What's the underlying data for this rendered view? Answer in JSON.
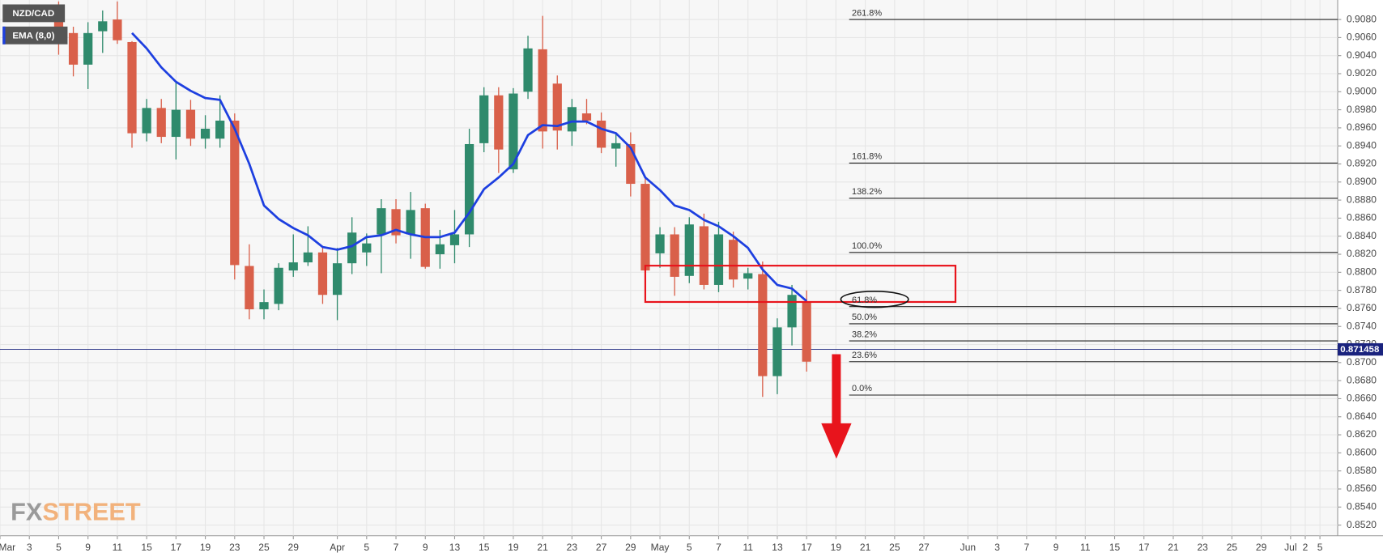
{
  "chart_data": {
    "type": "candlestick",
    "name": "NZD/CAD",
    "up_color": "#2f8a6c",
    "down_color": "#d9604a",
    "grid": true,
    "xlim": [
      0,
      91.21
    ],
    "ylim": [
      0.85082,
      0.91016
    ],
    "xticks": [
      {
        "value": 0,
        "label": "Mar"
      },
      {
        "value": 2,
        "label": "3"
      },
      {
        "value": 4,
        "label": "5"
      },
      {
        "value": 6,
        "label": "9"
      },
      {
        "value": 8,
        "label": "11"
      },
      {
        "value": 10,
        "label": "15"
      },
      {
        "value": 12,
        "label": "17"
      },
      {
        "value": 14,
        "label": "19"
      },
      {
        "value": 16,
        "label": "23"
      },
      {
        "value": 18,
        "label": "25"
      },
      {
        "value": 20,
        "label": "29"
      },
      {
        "value": 23,
        "label": "Apr"
      },
      {
        "value": 25,
        "label": "5"
      },
      {
        "value": 27,
        "label": "7"
      },
      {
        "value": 29,
        "label": "9"
      },
      {
        "value": 31,
        "label": "13"
      },
      {
        "value": 33,
        "label": "15"
      },
      {
        "value": 35,
        "label": "19"
      },
      {
        "value": 37,
        "label": "21"
      },
      {
        "value": 39,
        "label": "23"
      },
      {
        "value": 41,
        "label": "27"
      },
      {
        "value": 43,
        "label": "29"
      },
      {
        "value": 45,
        "label": "May"
      },
      {
        "value": 47,
        "label": "5"
      },
      {
        "value": 49,
        "label": "7"
      },
      {
        "value": 51,
        "label": "11"
      },
      {
        "value": 53,
        "label": "13"
      },
      {
        "value": 55,
        "label": "17"
      },
      {
        "value": 57,
        "label": "19"
      },
      {
        "value": 59,
        "label": "21"
      },
      {
        "value": 61,
        "label": "25"
      },
      {
        "value": 63,
        "label": "27"
      },
      {
        "value": 66,
        "label": "Jun"
      },
      {
        "value": 68,
        "label": "3"
      },
      {
        "value": 70,
        "label": "7"
      },
      {
        "value": 72,
        "label": "9"
      },
      {
        "value": 74,
        "label": "11"
      },
      {
        "value": 76,
        "label": "15"
      },
      {
        "value": 78,
        "label": "17"
      },
      {
        "value": 80,
        "label": "21"
      },
      {
        "value": 82,
        "label": "23"
      },
      {
        "value": 84,
        "label": "25"
      },
      {
        "value": 86,
        "label": "29"
      },
      {
        "value": 88,
        "label": "Jul"
      },
      {
        "value": 89,
        "label": "2"
      },
      {
        "value": 90,
        "label": "5"
      }
    ],
    "yticks": [
      {
        "value": 0.852,
        "label": "0.8520"
      },
      {
        "value": 0.854,
        "label": "0.8540"
      },
      {
        "value": 0.856,
        "label": "0.8560"
      },
      {
        "value": 0.858,
        "label": "0.8580"
      },
      {
        "value": 0.86,
        "label": "0.8600"
      },
      {
        "value": 0.862,
        "label": "0.8620"
      },
      {
        "value": 0.864,
        "label": "0.8640"
      },
      {
        "value": 0.866,
        "label": "0.8660"
      },
      {
        "value": 0.868,
        "label": "0.8680"
      },
      {
        "value": 0.87,
        "label": "0.8700"
      },
      {
        "value": 0.872,
        "label": "0.8720"
      },
      {
        "value": 0.874,
        "label": "0.8740"
      },
      {
        "value": 0.876,
        "label": "0.8760"
      },
      {
        "value": 0.878,
        "label": "0.8780"
      },
      {
        "value": 0.88,
        "label": "0.8800"
      },
      {
        "value": 0.882,
        "label": "0.8820"
      },
      {
        "value": 0.884,
        "label": "0.8840"
      },
      {
        "value": 0.886,
        "label": "0.8860"
      },
      {
        "value": 0.888,
        "label": "0.8880"
      },
      {
        "value": 0.89,
        "label": "0.8900"
      },
      {
        "value": 0.892,
        "label": "0.8920"
      },
      {
        "value": 0.894,
        "label": "0.8940"
      },
      {
        "value": 0.896,
        "label": "0.8960"
      },
      {
        "value": 0.898,
        "label": "0.8980"
      },
      {
        "value": 0.9,
        "label": "0.9000"
      },
      {
        "value": 0.902,
        "label": "0.9020"
      },
      {
        "value": 0.904,
        "label": "0.9040"
      },
      {
        "value": 0.906,
        "label": "0.9060"
      },
      {
        "value": 0.908,
        "label": "0.9080"
      }
    ],
    "x": [
      4,
      5,
      6,
      7,
      8,
      9,
      10,
      11,
      12,
      13,
      14,
      15,
      16,
      17,
      18,
      19,
      20,
      21,
      22,
      23,
      24,
      25,
      26,
      27,
      28,
      29,
      30,
      31,
      32,
      33,
      34,
      35,
      36,
      37,
      38,
      39,
      40,
      41,
      42,
      43,
      44,
      45,
      46,
      47,
      48,
      49,
      50,
      51,
      52,
      53,
      54,
      55
    ],
    "open": [
      0.9087,
      0.9065,
      0.903,
      0.9067,
      0.908,
      0.9055,
      0.8954,
      0.8982,
      0.895,
      0.898,
      0.8948,
      0.8948,
      0.8968,
      0.8807,
      0.8759,
      0.8765,
      0.8802,
      0.8811,
      0.8822,
      0.8775,
      0.881,
      0.8822,
      0.8842,
      0.887,
      0.8842,
      0.8871,
      0.882,
      0.883,
      0.8842,
      0.8943,
      0.8996,
      0.8914,
      0.9,
      0.9047,
      0.9009,
      0.8956,
      0.8976,
      0.8968,
      0.8937,
      0.8942,
      0.8898,
      0.8821,
      0.8842,
      0.8796,
      0.8851,
      0.8786,
      0.8836,
      0.8793,
      0.8798,
      0.8685,
      0.8739,
      0.8768
    ],
    "high": [
      0.91,
      0.9072,
      0.9077,
      0.909,
      0.91,
      0.9056,
      0.8992,
      0.8992,
      0.9011,
      0.8991,
      0.8974,
      0.8996,
      0.8976,
      0.8831,
      0.8781,
      0.881,
      0.8842,
      0.8851,
      0.8829,
      0.8827,
      0.8861,
      0.8843,
      0.8881,
      0.8881,
      0.8889,
      0.8876,
      0.8847,
      0.8869,
      0.8959,
      0.9005,
      0.9005,
      0.9004,
      0.9062,
      0.9084,
      0.9018,
      0.8992,
      0.8992,
      0.8977,
      0.8955,
      0.8955,
      0.8905,
      0.885,
      0.885,
      0.8861,
      0.8865,
      0.8856,
      0.8845,
      0.8805,
      0.8812,
      0.8749,
      0.8786,
      0.878
    ],
    "low": [
      0.9041,
      0.9017,
      0.9003,
      0.9043,
      0.9053,
      0.8938,
      0.8945,
      0.8943,
      0.8925,
      0.894,
      0.8937,
      0.8938,
      0.8792,
      0.8748,
      0.8748,
      0.8758,
      0.8795,
      0.8807,
      0.8765,
      0.8747,
      0.8798,
      0.8807,
      0.8799,
      0.8832,
      0.8815,
      0.8804,
      0.8804,
      0.881,
      0.8828,
      0.8933,
      0.891,
      0.891,
      0.8992,
      0.8937,
      0.8936,
      0.894,
      0.8964,
      0.8932,
      0.8917,
      0.8884,
      0.8796,
      0.8805,
      0.8774,
      0.8788,
      0.8781,
      0.8778,
      0.8783,
      0.8781,
      0.8662,
      0.8665,
      0.8719,
      0.869
    ],
    "close": [
      0.9067,
      0.903,
      0.9065,
      0.9078,
      0.9057,
      0.8954,
      0.8982,
      0.895,
      0.898,
      0.8948,
      0.8959,
      0.8968,
      0.8808,
      0.8759,
      0.8767,
      0.8805,
      0.8811,
      0.8822,
      0.8775,
      0.881,
      0.8844,
      0.8832,
      0.8871,
      0.8841,
      0.8869,
      0.8806,
      0.8831,
      0.8842,
      0.8942,
      0.8996,
      0.8936,
      0.8998,
      0.9048,
      0.8956,
      0.8957,
      0.8983,
      0.8968,
      0.8938,
      0.8943,
      0.8898,
      0.8802,
      0.8842,
      0.8795,
      0.8853,
      0.8786,
      0.8842,
      0.8792,
      0.8799,
      0.8685,
      0.8739,
      0.8775,
      0.8701
    ],
    "ema": {
      "name": "EMA (8,0)",
      "color": "#1d3fe0",
      "values": [
        null,
        null,
        null,
        null,
        null,
        0.9065,
        0.9048,
        0.9027,
        0.9011,
        0.9001,
        0.8993,
        0.8991,
        0.8959,
        0.892,
        0.8874,
        0.8859,
        0.8849,
        0.8841,
        0.8828,
        0.8825,
        0.8829,
        0.8839,
        0.8841,
        0.8847,
        0.8842,
        0.8839,
        0.8839,
        0.8844,
        0.8866,
        0.8892,
        0.8905,
        0.892,
        0.8952,
        0.8963,
        0.8962,
        0.8967,
        0.8967,
        0.8959,
        0.8954,
        0.8938,
        0.8905,
        0.8891,
        0.8874,
        0.8869,
        0.8858,
        0.8851,
        0.884,
        0.8827,
        0.8803,
        0.8786,
        0.8782,
        0.8768
      ]
    },
    "fib_levels": [
      {
        "label": "261.8%",
        "value": 0.908
      },
      {
        "label": "161.8%",
        "value": 0.8921
      },
      {
        "label": "138.2%",
        "value": 0.8882
      },
      {
        "label": "100.0%",
        "value": 0.8822
      },
      {
        "label": "61.8%",
        "value": 0.8762
      },
      {
        "label": "50.0%",
        "value": 0.8743
      },
      {
        "label": "38.2%",
        "value": 0.8724
      },
      {
        "label": "23.6%",
        "value": 0.8701
      },
      {
        "label": "0.0%",
        "value": 0.8664
      }
    ],
    "fib_start_x": 57.9,
    "last_price": 0.871458,
    "watermark_prefix": "FX",
    "watermark_suffix": "STREET"
  }
}
